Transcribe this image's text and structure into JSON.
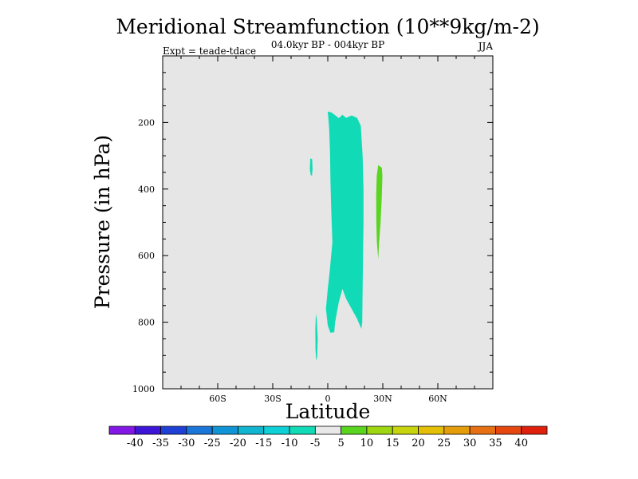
{
  "chart_data": {
    "type": "heatmap",
    "title": "Meridional Streamfunction (10**9kg/m-2)",
    "subtitle": "04.0kyr BP - 004kyr BP",
    "left_label": "Expt = teade-tdace",
    "right_label": "JJA",
    "xlabel": "Latitude",
    "ylabel": "Pressure (in hPa)",
    "xlim": [
      -90,
      90
    ],
    "ylim": [
      0,
      1000
    ],
    "x_ticks": [
      {
        "value": -60,
        "label": "60S"
      },
      {
        "value": -30,
        "label": "30S"
      },
      {
        "value": 0,
        "label": "0"
      },
      {
        "value": 30,
        "label": "30N"
      },
      {
        "value": 60,
        "label": "60N"
      }
    ],
    "y_ticks": [
      {
        "value": 200,
        "label": "200"
      },
      {
        "value": 400,
        "label": "400"
      },
      {
        "value": 600,
        "label": "600"
      },
      {
        "value": 800,
        "label": "800"
      },
      {
        "value": 1000,
        "label": "1000"
      }
    ],
    "background_color": "#e6e6e6",
    "regions": [
      {
        "name": "main-cell",
        "range": "-10 to -5",
        "color": "#10dbb6",
        "points": [
          [
            0,
            167
          ],
          [
            2,
            170
          ],
          [
            4,
            178
          ],
          [
            6,
            187
          ],
          [
            8,
            177
          ],
          [
            10,
            186
          ],
          [
            13,
            179
          ],
          [
            16,
            186
          ],
          [
            18,
            210
          ],
          [
            19,
            300
          ],
          [
            19.5,
            400
          ],
          [
            19.5,
            500
          ],
          [
            19.2,
            600
          ],
          [
            19,
            700
          ],
          [
            18.8,
            800
          ],
          [
            18.3,
            820
          ],
          [
            16,
            790
          ],
          [
            13,
            760
          ],
          [
            10,
            730
          ],
          [
            8,
            700
          ],
          [
            6,
            740
          ],
          [
            4,
            800
          ],
          [
            3.5,
            830
          ],
          [
            1.5,
            832
          ],
          [
            0,
            810
          ],
          [
            -1,
            760
          ],
          [
            0,
            700
          ],
          [
            1,
            650
          ],
          [
            2.5,
            560
          ],
          [
            2,
            480
          ],
          [
            1.5,
            380
          ],
          [
            1.2,
            290
          ],
          [
            0.8,
            220
          ]
        ]
      },
      {
        "name": "small-patch-upper",
        "range": "-10 to -5",
        "color": "#10dbb6",
        "points": [
          [
            -9.5,
            308
          ],
          [
            -8.5,
            310
          ],
          [
            -8.3,
            340
          ],
          [
            -8.6,
            360
          ],
          [
            -9.3,
            358
          ],
          [
            -9.8,
            340
          ]
        ]
      },
      {
        "name": "small-patch-lower",
        "range": "-10 to -5",
        "color": "#10dbb6",
        "points": [
          [
            -6.5,
            775
          ],
          [
            -6,
            790
          ],
          [
            -5.5,
            850
          ],
          [
            -5.8,
            905
          ],
          [
            -6.3,
            915
          ],
          [
            -6.7,
            880
          ],
          [
            -6.8,
            820
          ]
        ]
      },
      {
        "name": "positive-cell",
        "range": "5 to 10",
        "color": "#59d41f",
        "points": [
          [
            27.5,
            328
          ],
          [
            29.5,
            336
          ],
          [
            29.8,
            360
          ],
          [
            29.5,
            420
          ],
          [
            28.8,
            500
          ],
          [
            28,
            560
          ],
          [
            27.5,
            610
          ],
          [
            26.8,
            560
          ],
          [
            26.5,
            500
          ],
          [
            26.4,
            420
          ],
          [
            26.7,
            360
          ]
        ]
      }
    ],
    "colorbar": {
      "levels": [
        "-40",
        "-35",
        "-30",
        "-25",
        "-20",
        "-15",
        "-10",
        "-5",
        "5",
        "10",
        "15",
        "20",
        "25",
        "30",
        "35",
        "40"
      ],
      "colors": [
        "#8317e6",
        "#3c15d9",
        "#1f40d4",
        "#1a76d9",
        "#0f95d6",
        "#10b5cf",
        "#0ed0d6",
        "#10dbb6",
        "#e8e8e8",
        "#59d41f",
        "#9ed611",
        "#c7d40e",
        "#e3bf05",
        "#e69d0a",
        "#e67012",
        "#e6470f",
        "#e0200d"
      ]
    }
  }
}
